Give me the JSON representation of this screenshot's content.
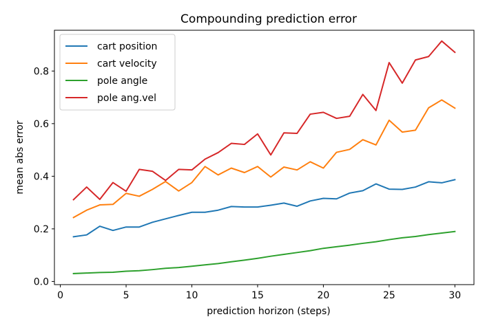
{
  "chart_data": {
    "type": "line",
    "title": "Compounding prediction error",
    "xlabel": "prediction horizon (steps)",
    "ylabel": "mean abs error",
    "xlim": [
      -0.45,
      31.45
    ],
    "ylim": [
      -0.012,
      0.955
    ],
    "xticks": [
      0,
      5,
      10,
      15,
      20,
      25,
      30
    ],
    "yticks": [
      0.0,
      0.2,
      0.4,
      0.6,
      0.8
    ],
    "xtick_labels": [
      "0",
      "5",
      "10",
      "15",
      "20",
      "25",
      "30"
    ],
    "ytick_labels": [
      "0.0",
      "0.2",
      "0.4",
      "0.6",
      "0.8"
    ],
    "grid": false,
    "legend_position": "top-left",
    "x": [
      1,
      2,
      3,
      4,
      5,
      6,
      7,
      8,
      9,
      10,
      11,
      12,
      13,
      14,
      15,
      16,
      17,
      18,
      19,
      20,
      21,
      22,
      23,
      24,
      25,
      26,
      27,
      28,
      29,
      30
    ],
    "series": [
      {
        "name": "cart position",
        "color": "#1f77b4",
        "values": [
          0.17,
          0.177,
          0.21,
          0.194,
          0.207,
          0.207,
          0.225,
          0.238,
          0.251,
          0.263,
          0.263,
          0.271,
          0.285,
          0.283,
          0.283,
          0.29,
          0.298,
          0.286,
          0.306,
          0.316,
          0.314,
          0.336,
          0.345,
          0.371,
          0.351,
          0.35,
          0.359,
          0.379,
          0.375,
          0.387
        ]
      },
      {
        "name": "cart velocity",
        "color": "#ff7f0e",
        "values": [
          0.243,
          0.271,
          0.291,
          0.293,
          0.335,
          0.324,
          0.35,
          0.38,
          0.344,
          0.376,
          0.437,
          0.405,
          0.431,
          0.414,
          0.437,
          0.397,
          0.435,
          0.424,
          0.455,
          0.431,
          0.491,
          0.502,
          0.539,
          0.519,
          0.613,
          0.568,
          0.575,
          0.66,
          0.69,
          0.659
        ]
      },
      {
        "name": "pole angle",
        "color": "#2ca02c",
        "values": [
          0.03,
          0.032,
          0.034,
          0.035,
          0.039,
          0.041,
          0.045,
          0.05,
          0.053,
          0.058,
          0.063,
          0.068,
          0.075,
          0.081,
          0.088,
          0.096,
          0.103,
          0.11,
          0.117,
          0.126,
          0.132,
          0.138,
          0.145,
          0.151,
          0.159,
          0.166,
          0.171,
          0.178,
          0.184,
          0.19
        ]
      },
      {
        "name": "pole ang.vel",
        "color": "#d62728",
        "values": [
          0.311,
          0.359,
          0.312,
          0.376,
          0.343,
          0.426,
          0.419,
          0.384,
          0.426,
          0.424,
          0.465,
          0.49,
          0.525,
          0.521,
          0.561,
          0.481,
          0.565,
          0.563,
          0.636,
          0.643,
          0.62,
          0.628,
          0.711,
          0.65,
          0.832,
          0.754,
          0.842,
          0.855,
          0.914,
          0.871
        ]
      }
    ]
  }
}
